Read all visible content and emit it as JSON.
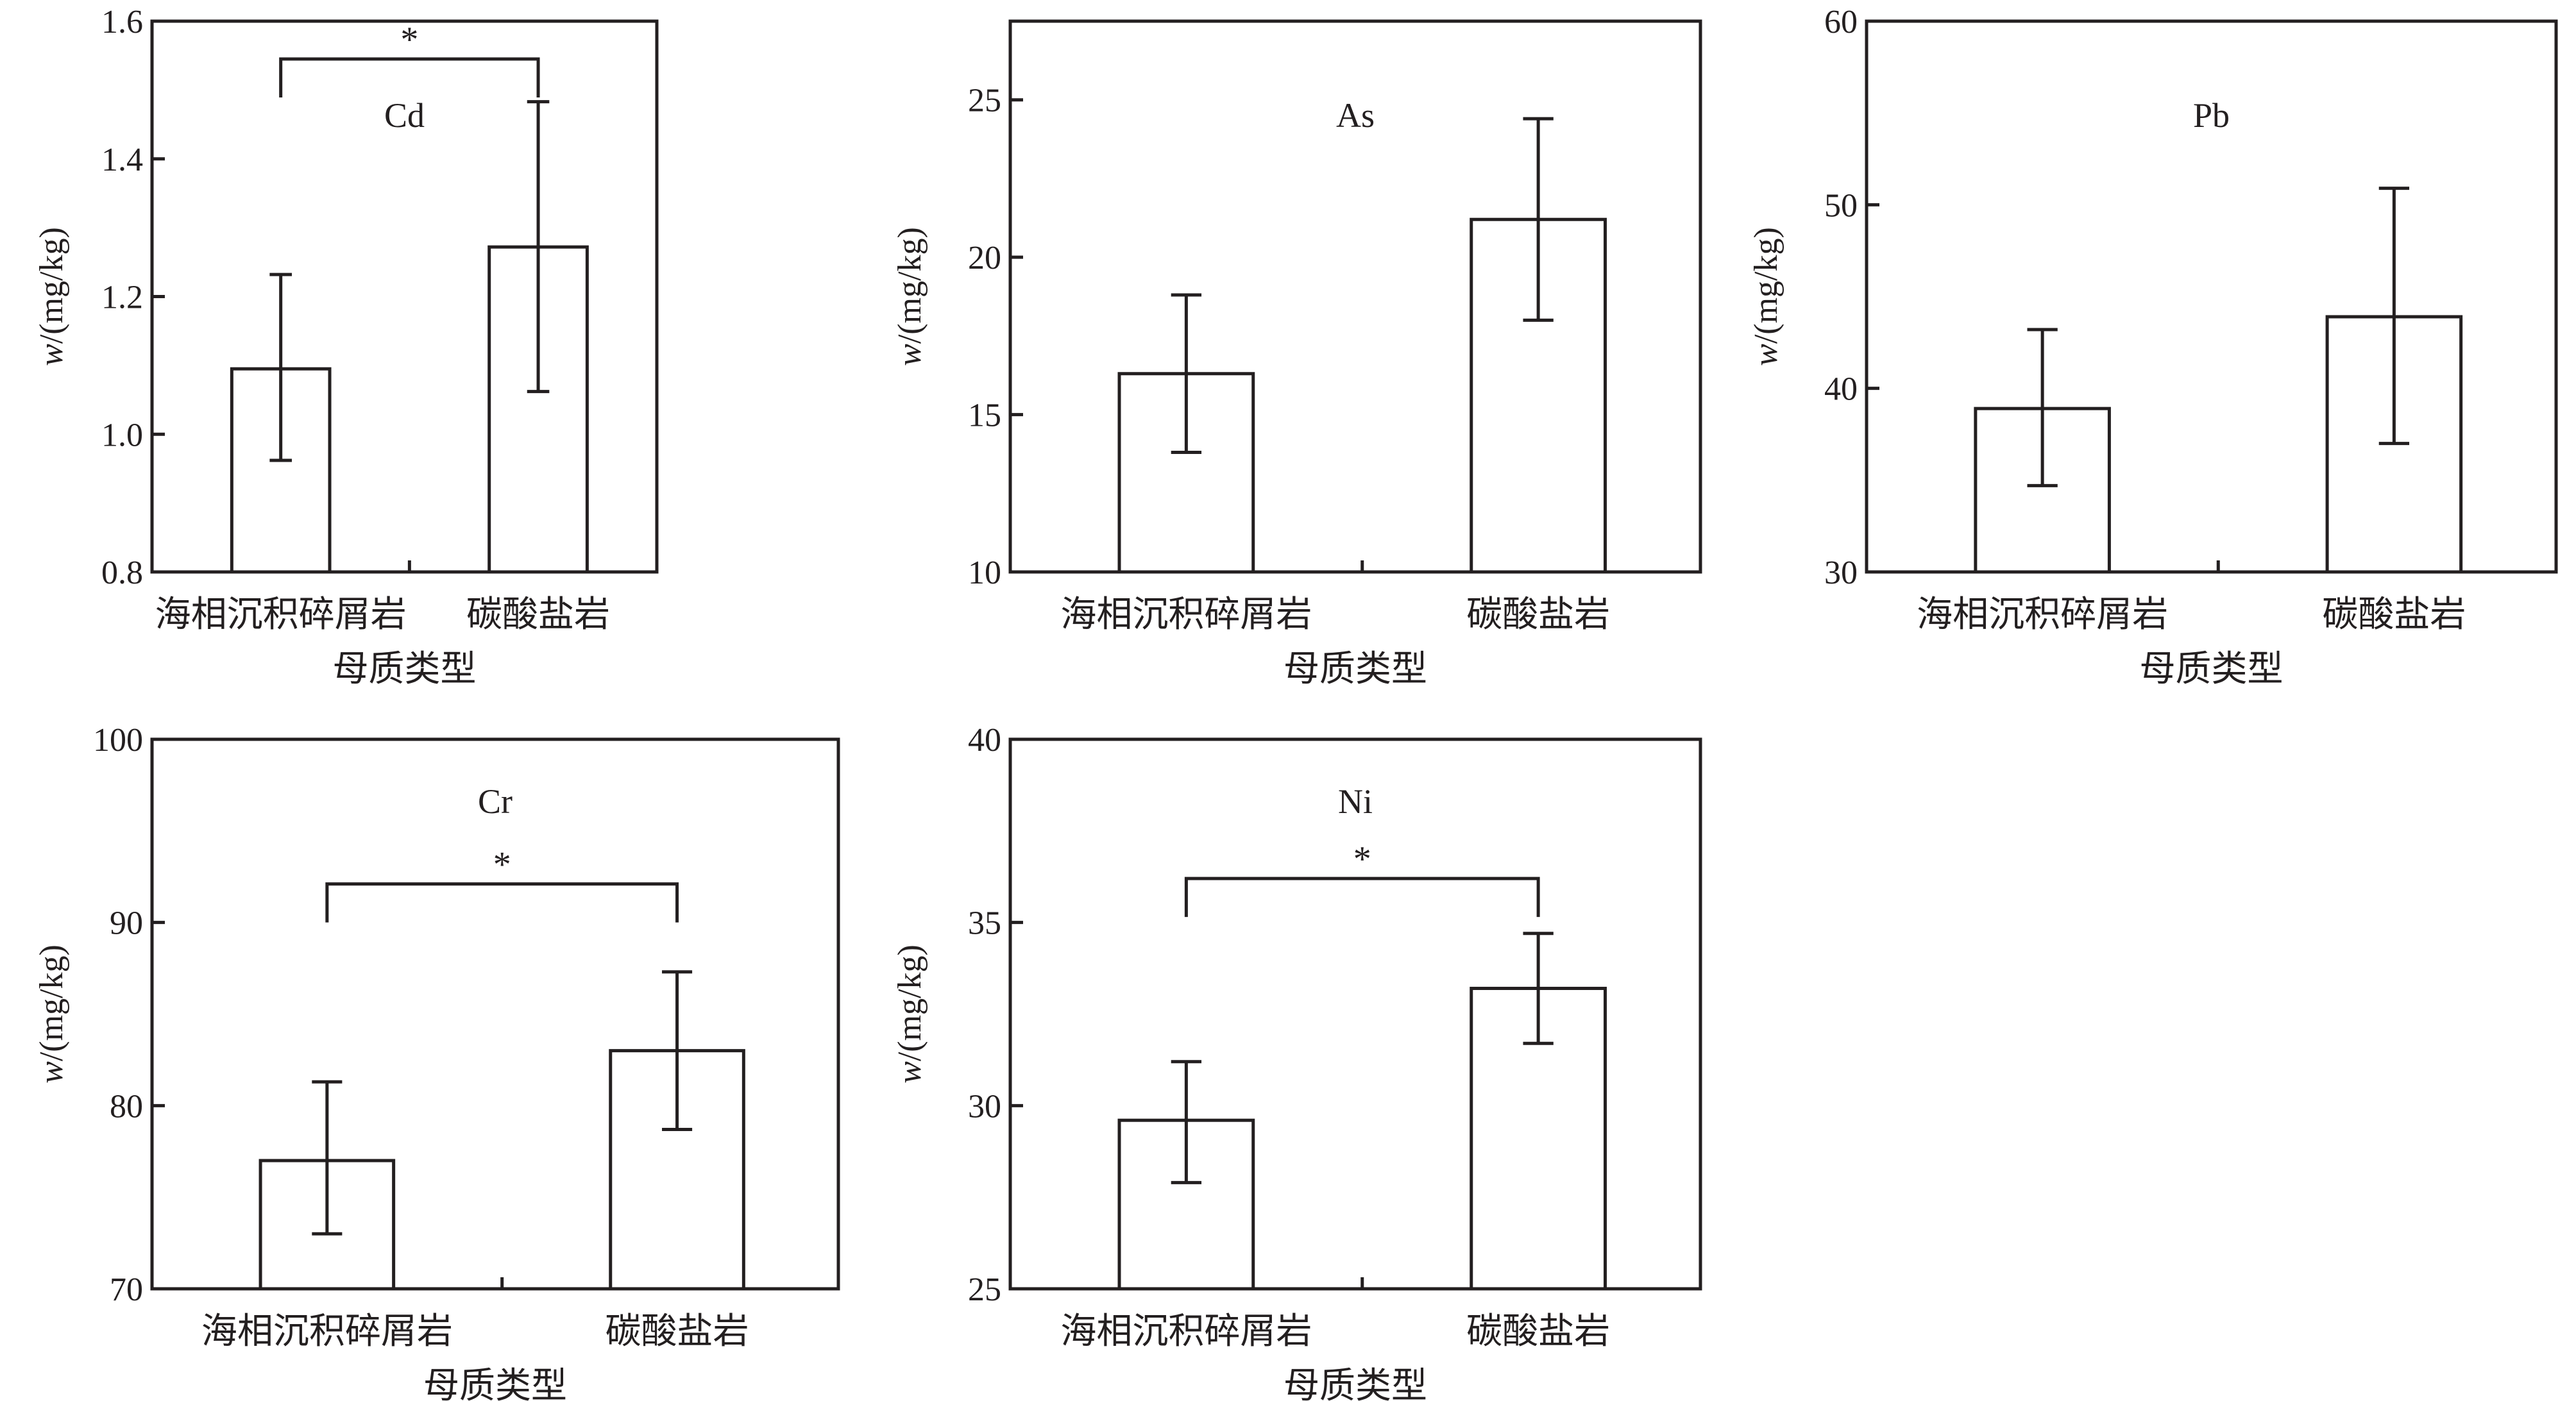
{
  "chart_data": [
    {
      "type": "bar",
      "title": "Cd",
      "xlabel": "母质类型",
      "ylabel_italic": "w",
      "ylabel_rest": "/(mg/kg)",
      "categories": [
        "海相沉积碎屑岩",
        "碳酸盐岩"
      ],
      "values": [
        1.095,
        1.272
      ],
      "error_low": [
        0.962,
        1.062
      ],
      "error_high": [
        1.232,
        1.483
      ],
      "ylim": [
        0.8,
        1.6
      ],
      "yticks": [
        0.8,
        1.0,
        1.2,
        1.4,
        1.6
      ],
      "ytick_labels": [
        "0.8",
        "1.0",
        "1.2",
        "1.4",
        "1.6"
      ],
      "significance": {
        "label": "*",
        "between": [
          0,
          1
        ],
        "level": 1.545
      }
    },
    {
      "type": "bar",
      "title": "As",
      "xlabel": "母质类型",
      "ylabel_italic": "w",
      "ylabel_rest": "/(mg/kg)",
      "categories": [
        "海相沉积碎屑岩",
        "碳酸盐岩"
      ],
      "values": [
        16.3,
        21.2
      ],
      "error_low": [
        13.8,
        18.0
      ],
      "error_high": [
        18.8,
        24.4
      ],
      "ylim": [
        10,
        27.5
      ],
      "yticks": [
        10,
        15,
        20,
        25
      ],
      "ytick_labels": [
        "10",
        "15",
        "20",
        "25"
      ],
      "significance": null
    },
    {
      "type": "bar",
      "title": "Pb",
      "xlabel": "母质类型",
      "ylabel_italic": "w",
      "ylabel_rest": "/(mg/kg)",
      "categories": [
        "海相沉积碎屑岩",
        "碳酸盐岩"
      ],
      "values": [
        38.9,
        43.9
      ],
      "error_low": [
        34.7,
        37.0
      ],
      "error_high": [
        43.2,
        50.9
      ],
      "ylim": [
        30,
        60
      ],
      "yticks": [
        30,
        40,
        50,
        60
      ],
      "ytick_labels": [
        "30",
        "40",
        "50",
        "60"
      ],
      "significance": null
    },
    {
      "type": "bar",
      "title": "Cr",
      "xlabel": "母质类型",
      "ylabel_italic": "w",
      "ylabel_rest": "/(mg/kg)",
      "categories": [
        "海相沉积碎屑岩",
        "碳酸盐岩"
      ],
      "values": [
        77.0,
        83.0
      ],
      "error_low": [
        73.0,
        78.7
      ],
      "error_high": [
        81.3,
        87.3
      ],
      "ylim": [
        70,
        100
      ],
      "yticks": [
        70,
        80,
        90,
        100
      ],
      "ytick_labels": [
        "70",
        "80",
        "90",
        "100"
      ],
      "significance": {
        "label": "*",
        "between": [
          0,
          1
        ],
        "level": 92.1
      }
    },
    {
      "type": "bar",
      "title": "Ni",
      "xlabel": "母质类型",
      "ylabel_italic": "w",
      "ylabel_rest": "/(mg/kg)",
      "categories": [
        "海相沉积碎屑岩",
        "碳酸盐岩"
      ],
      "values": [
        29.6,
        33.2
      ],
      "error_low": [
        27.9,
        31.7
      ],
      "error_high": [
        31.2,
        34.7
      ],
      "ylim": [
        25,
        40
      ],
      "yticks": [
        25,
        30,
        35,
        40
      ],
      "ytick_labels": [
        "25",
        "30",
        "35",
        "40"
      ],
      "significance": {
        "label": "*",
        "between": [
          0,
          1
        ],
        "level": 36.2
      }
    }
  ]
}
